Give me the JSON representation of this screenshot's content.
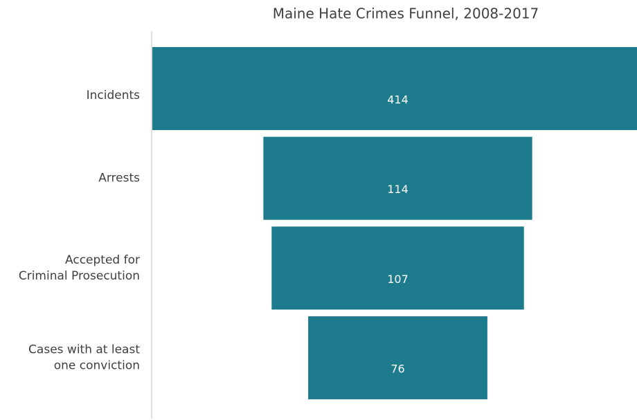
{
  "chart_data": {
    "type": "funnel",
    "title": "Maine Hate Crimes Funnel, 2008-2017",
    "categories": [
      "Incidents",
      "Arrests",
      "Accepted for\nCriminal Prosecution",
      "Cases with at least\none conviction"
    ],
    "values": [
      414,
      114,
      107,
      76
    ],
    "color": "#1e7b8e"
  }
}
